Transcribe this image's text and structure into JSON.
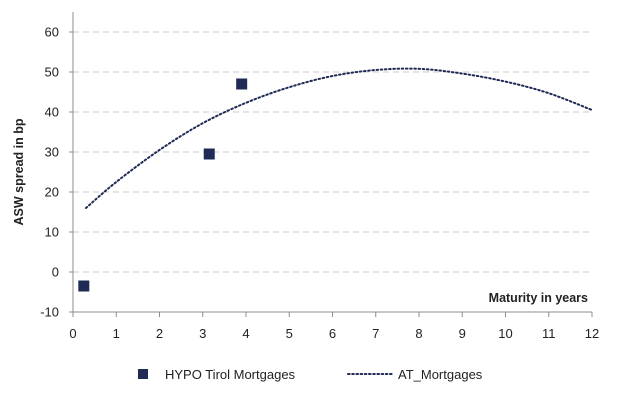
{
  "chart_data": {
    "type": "scatter",
    "xlabel": "Maturity in years",
    "ylabel": "ASW spread in bp",
    "xlim": [
      0,
      12
    ],
    "ylim": [
      -10,
      60
    ],
    "xticks": [
      0,
      1,
      2,
      3,
      4,
      5,
      6,
      7,
      8,
      9,
      10,
      11,
      12
    ],
    "yticks": [
      -10,
      0,
      10,
      20,
      30,
      40,
      50,
      60
    ],
    "grid": "horizontal dashed",
    "legend_position": "bottom",
    "series": [
      {
        "name": "HYPO Tirol Mortgages",
        "kind": "scatter",
        "marker": "square",
        "color": "#1f2a55",
        "points": [
          {
            "x": 0.25,
            "y": -3.5
          },
          {
            "x": 3.15,
            "y": 29.5
          },
          {
            "x": 3.9,
            "y": 47.0
          }
        ]
      },
      {
        "name": "AT_Mortgages",
        "kind": "line",
        "style": "dotted",
        "color": "#1f2a55",
        "points": [
          {
            "x": 0.3,
            "y": 16.0
          },
          {
            "x": 1,
            "y": 22.5
          },
          {
            "x": 2,
            "y": 30.5
          },
          {
            "x": 3,
            "y": 37.2
          },
          {
            "x": 4,
            "y": 42.3
          },
          {
            "x": 5,
            "y": 46.2
          },
          {
            "x": 6,
            "y": 49.0
          },
          {
            "x": 7,
            "y": 50.5
          },
          {
            "x": 8,
            "y": 50.8
          },
          {
            "x": 9,
            "y": 49.6
          },
          {
            "x": 10,
            "y": 47.6
          },
          {
            "x": 11,
            "y": 44.7
          },
          {
            "x": 12,
            "y": 40.5
          }
        ]
      }
    ]
  }
}
